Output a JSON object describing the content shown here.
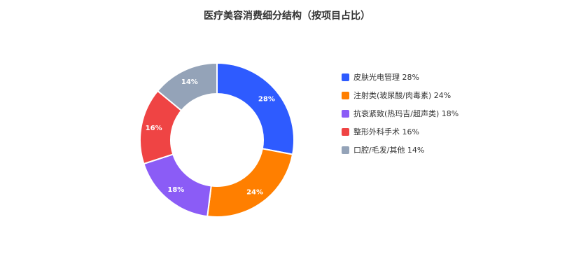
{
  "chart_data": {
    "type": "pie",
    "variant": "donut",
    "title": "医疗美容消费细分结构（按项目占比）",
    "legend_position": "right",
    "slices": [
      {
        "label": "皮肤光电管理",
        "value": 28,
        "value_label": "28%",
        "color": "#2E5BFF"
      },
      {
        "label": "注射类(玻尿酸/肉毒素)",
        "value": 24,
        "value_label": "24%",
        "color": "#FF7F00"
      },
      {
        "label": "抗衰紧致(热玛吉/超声类)",
        "value": 18,
        "value_label": "18%",
        "color": "#8B5CF6"
      },
      {
        "label": "整形外科手术",
        "value": 16,
        "value_label": "16%",
        "color": "#EF4444"
      },
      {
        "label": "口腔/毛发/其他",
        "value": 14,
        "value_label": "14%",
        "color": "#94A3B8"
      }
    ],
    "legend": [
      "皮肤光电管理 28%",
      "注射类(玻尿酸/肉毒素) 24%",
      "抗衰紧致(热玛吉/超声类) 18%",
      "整形外科手术 16%",
      "口腔/毛发/其他 14%"
    ]
  }
}
